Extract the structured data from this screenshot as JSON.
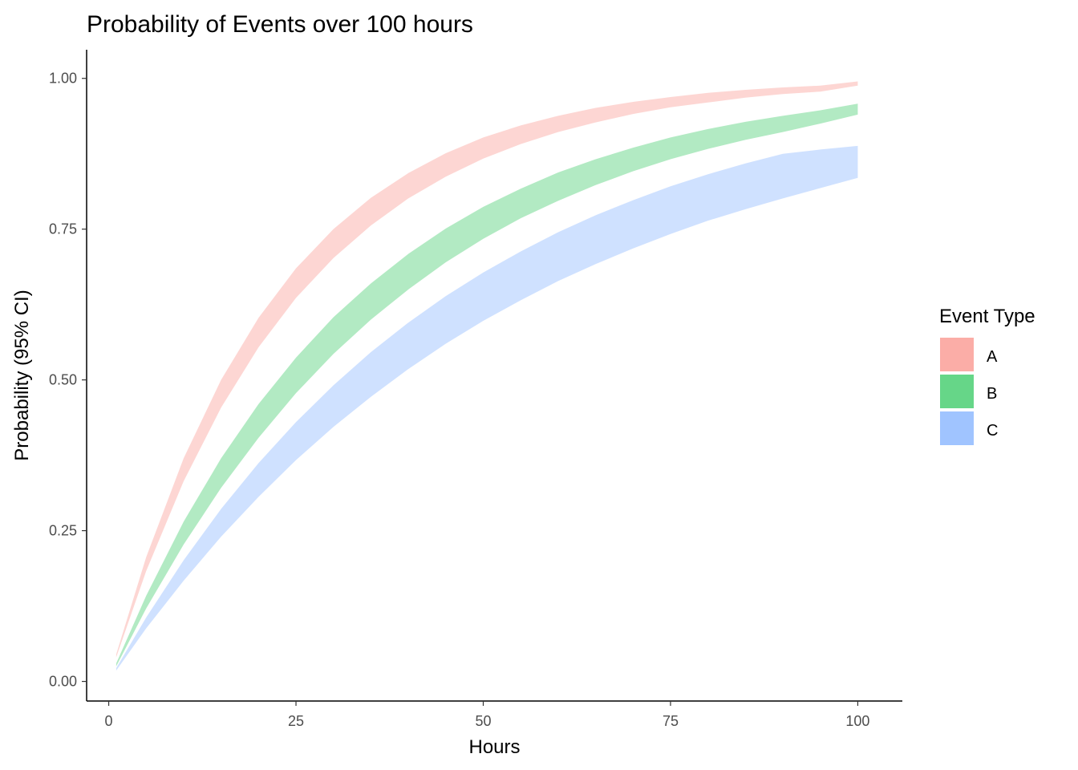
{
  "chart_data": {
    "type": "area",
    "title": "Probability of Events over 100 hours",
    "xlabel": "Hours",
    "ylabel": "Probability (95% CI)",
    "xlim": [
      -2.95,
      105.95
    ],
    "ylim": [
      -0.0325,
      1.0475
    ],
    "x_ticks": [
      0,
      25,
      50,
      75,
      100
    ],
    "x_tick_labels": [
      "0",
      "25",
      "50",
      "75",
      "100"
    ],
    "y_ticks": [
      0,
      0.25,
      0.5,
      0.75,
      1.0
    ],
    "y_tick_labels": [
      "0.00",
      "0.25",
      "0.50",
      "0.75",
      "1.00"
    ],
    "grid": false,
    "legend": {
      "title": "Event Type",
      "position": "right",
      "entries": [
        "A",
        "B",
        "C"
      ]
    },
    "x": [
      1,
      5,
      10,
      15,
      20,
      25,
      30,
      35,
      40,
      45,
      50,
      55,
      60,
      65,
      70,
      75,
      80,
      85,
      90,
      95,
      100
    ],
    "series": [
      {
        "name": "A",
        "color": "#f8766d",
        "lower": [
          0.04,
          0.183,
          0.332,
          0.454,
          0.554,
          0.636,
          0.702,
          0.756,
          0.801,
          0.837,
          0.867,
          0.891,
          0.911,
          0.927,
          0.941,
          0.952,
          0.96,
          0.968,
          0.974,
          0.978,
          0.988
        ],
        "upper": [
          0.045,
          0.206,
          0.37,
          0.5,
          0.603,
          0.685,
          0.75,
          0.802,
          0.843,
          0.876,
          0.902,
          0.922,
          0.938,
          0.951,
          0.961,
          0.969,
          0.976,
          0.981,
          0.985,
          0.988,
          0.995
        ]
      },
      {
        "name": "B",
        "color": "#00ba38",
        "lower": [
          0.025,
          0.121,
          0.227,
          0.321,
          0.404,
          0.478,
          0.543,
          0.6,
          0.65,
          0.695,
          0.734,
          0.768,
          0.797,
          0.823,
          0.846,
          0.866,
          0.883,
          0.898,
          0.911,
          0.925,
          0.94
        ],
        "upper": [
          0.03,
          0.142,
          0.265,
          0.37,
          0.46,
          0.537,
          0.604,
          0.66,
          0.709,
          0.751,
          0.787,
          0.817,
          0.844,
          0.866,
          0.885,
          0.902,
          0.916,
          0.928,
          0.938,
          0.947,
          0.958
        ]
      },
      {
        "name": "C",
        "color": "#619cff",
        "lower": [
          0.018,
          0.088,
          0.167,
          0.24,
          0.306,
          0.367,
          0.422,
          0.472,
          0.518,
          0.56,
          0.598,
          0.632,
          0.664,
          0.692,
          0.718,
          0.742,
          0.764,
          0.783,
          0.801,
          0.818,
          0.835
        ],
        "upper": [
          0.022,
          0.106,
          0.201,
          0.286,
          0.362,
          0.43,
          0.491,
          0.546,
          0.595,
          0.639,
          0.678,
          0.713,
          0.745,
          0.773,
          0.798,
          0.821,
          0.841,
          0.859,
          0.875,
          0.882,
          0.888
        ]
      }
    ]
  }
}
